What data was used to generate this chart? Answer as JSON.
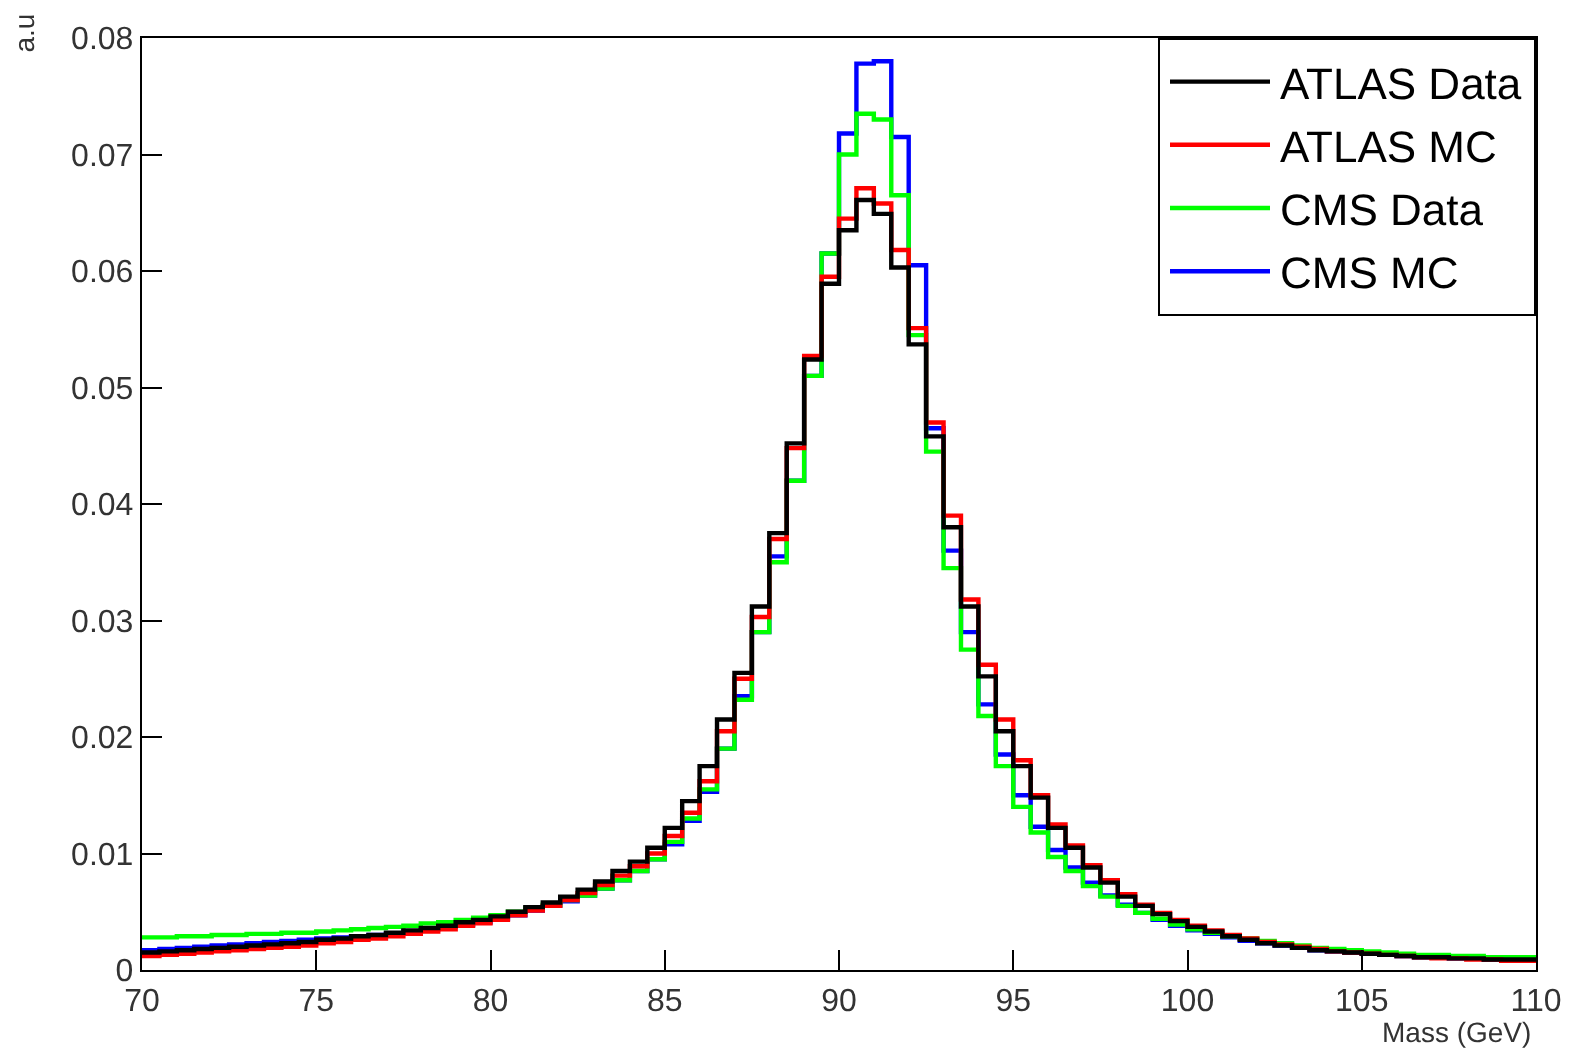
{
  "chart_data": {
    "type": "histogram",
    "xlabel": "Mass (GeV)",
    "ylabel": "a.u",
    "bins": [
      70,
      70.5,
      71,
      71.5,
      72,
      72.5,
      73,
      73.5,
      74,
      74.5,
      75,
      75.5,
      76,
      76.5,
      77,
      77.5,
      78,
      78.5,
      79,
      79.5,
      80,
      80.5,
      81,
      81.5,
      82,
      82.5,
      83,
      83.5,
      84,
      84.5,
      85,
      85.5,
      86,
      86.5,
      87,
      87.5,
      88,
      88.5,
      89,
      89.5,
      90,
      90.5,
      91,
      91.5,
      92,
      92.5,
      93,
      93.5,
      94,
      94.5,
      95,
      95.5,
      96,
      96.5,
      97,
      97.5,
      98,
      98.5,
      99,
      99.5,
      100,
      100.5,
      101,
      101.5,
      102,
      102.5,
      103,
      103.5,
      104,
      104.5,
      105,
      105.5,
      106,
      106.5,
      107,
      107.5,
      108,
      108.5,
      109,
      109.5,
      110
    ],
    "series": [
      {
        "name": "ATLAS Data",
        "color": "#000000",
        "values": [
          0.0015,
          0.0016,
          0.0017,
          0.0018,
          0.0019,
          0.002,
          0.0021,
          0.0022,
          0.0023,
          0.0024,
          0.0026,
          0.0027,
          0.0029,
          0.003,
          0.0032,
          0.0034,
          0.0036,
          0.0038,
          0.0041,
          0.0043,
          0.0046,
          0.005,
          0.0054,
          0.0058,
          0.0063,
          0.0069,
          0.0076,
          0.0085,
          0.0093,
          0.0105,
          0.0122,
          0.0145,
          0.0175,
          0.0215,
          0.0255,
          0.0312,
          0.0375,
          0.0452,
          0.0524,
          0.0589,
          0.0635,
          0.0661,
          0.0649,
          0.0603,
          0.0537,
          0.0458,
          0.038,
          0.0312,
          0.0252,
          0.0205,
          0.0175,
          0.0148,
          0.0122,
          0.0105,
          0.0088,
          0.0075,
          0.0063,
          0.0055,
          0.0048,
          0.0042,
          0.0037,
          0.0033,
          0.0029,
          0.0026,
          0.0023,
          0.0021,
          0.0019,
          0.0017,
          0.0016,
          0.0015,
          0.0014,
          0.0013,
          0.0012,
          0.0011,
          0.0011,
          0.001,
          0.001,
          0.0009,
          0.0009,
          0.0009
        ]
      },
      {
        "name": "ATLAS MC",
        "color": "#ff0000",
        "values": [
          0.0012,
          0.0013,
          0.0014,
          0.0015,
          0.0016,
          0.0017,
          0.0018,
          0.0019,
          0.002,
          0.0021,
          0.0023,
          0.0024,
          0.0026,
          0.0027,
          0.0029,
          0.0031,
          0.0033,
          0.0035,
          0.0038,
          0.004,
          0.0043,
          0.0047,
          0.0051,
          0.0055,
          0.006,
          0.0066,
          0.0073,
          0.0081,
          0.0089,
          0.01,
          0.0115,
          0.0135,
          0.0162,
          0.0205,
          0.025,
          0.0303,
          0.037,
          0.0448,
          0.0527,
          0.0595,
          0.0645,
          0.0671,
          0.0658,
          0.0618,
          0.0551,
          0.047,
          0.039,
          0.0318,
          0.0262,
          0.0215,
          0.018,
          0.015,
          0.0125,
          0.0107,
          0.009,
          0.0077,
          0.0065,
          0.0056,
          0.0049,
          0.0043,
          0.0038,
          0.0034,
          0.003,
          0.0027,
          0.0024,
          0.0022,
          0.002,
          0.0018,
          0.0016,
          0.0015,
          0.0014,
          0.0013,
          0.0012,
          0.0011,
          0.001,
          0.001,
          0.0009,
          0.0009,
          0.0008,
          0.0008
        ]
      },
      {
        "name": "CMS Data",
        "color": "#00ff00",
        "values": [
          0.0028,
          0.0028,
          0.0029,
          0.0029,
          0.003,
          0.003,
          0.0031,
          0.0031,
          0.0032,
          0.0032,
          0.0033,
          0.0034,
          0.0035,
          0.0036,
          0.0037,
          0.0038,
          0.004,
          0.0041,
          0.0043,
          0.0045,
          0.0047,
          0.005,
          0.0053,
          0.0056,
          0.006,
          0.0064,
          0.007,
          0.0077,
          0.0085,
          0.0095,
          0.011,
          0.013,
          0.0155,
          0.019,
          0.0232,
          0.029,
          0.035,
          0.042,
          0.051,
          0.0615,
          0.07,
          0.0735,
          0.073,
          0.0665,
          0.0545,
          0.0445,
          0.0345,
          0.0275,
          0.0218,
          0.0175,
          0.014,
          0.0118,
          0.0097,
          0.0085,
          0.0072,
          0.0063,
          0.0055,
          0.0049,
          0.0044,
          0.0039,
          0.0035,
          0.0032,
          0.0029,
          0.0027,
          0.0025,
          0.0023,
          0.0021,
          0.0019,
          0.0018,
          0.0017,
          0.0016,
          0.0015,
          0.0014,
          0.0013,
          0.0013,
          0.0012,
          0.0012,
          0.0011,
          0.0011,
          0.0011
        ]
      },
      {
        "name": "CMS MC",
        "color": "#0000ff",
        "values": [
          0.0017,
          0.0018,
          0.0019,
          0.002,
          0.0021,
          0.0022,
          0.0023,
          0.0024,
          0.0025,
          0.0026,
          0.0027,
          0.0028,
          0.0029,
          0.003,
          0.0031,
          0.0033,
          0.0035,
          0.0037,
          0.0039,
          0.0041,
          0.0044,
          0.0047,
          0.0051,
          0.0055,
          0.0059,
          0.0064,
          0.007,
          0.0077,
          0.0085,
          0.0095,
          0.0108,
          0.0128,
          0.0153,
          0.019,
          0.0235,
          0.029,
          0.0355,
          0.042,
          0.051,
          0.0615,
          0.0718,
          0.0778,
          0.078,
          0.0715,
          0.0605,
          0.0465,
          0.036,
          0.029,
          0.0228,
          0.0185,
          0.015,
          0.0123,
          0.0103,
          0.0088,
          0.0075,
          0.0064,
          0.0056,
          0.0049,
          0.0043,
          0.0038,
          0.0034,
          0.0031,
          0.0028,
          0.0025,
          0.0023,
          0.0021,
          0.0019,
          0.0017,
          0.0016,
          0.0015,
          0.0014,
          0.0013,
          0.0012,
          0.0011,
          0.0011,
          0.001,
          0.001,
          0.0009,
          0.0009,
          0.0009
        ]
      }
    ],
    "xlim": [
      70,
      110
    ],
    "xticks": [
      70,
      75,
      80,
      85,
      90,
      95,
      100,
      105,
      110
    ],
    "ylim": [
      0,
      0.08
    ],
    "yticks": [
      0,
      0.01,
      0.02,
      0.03,
      0.04,
      0.05,
      0.06,
      0.07,
      0.08
    ],
    "legend": "top right"
  }
}
